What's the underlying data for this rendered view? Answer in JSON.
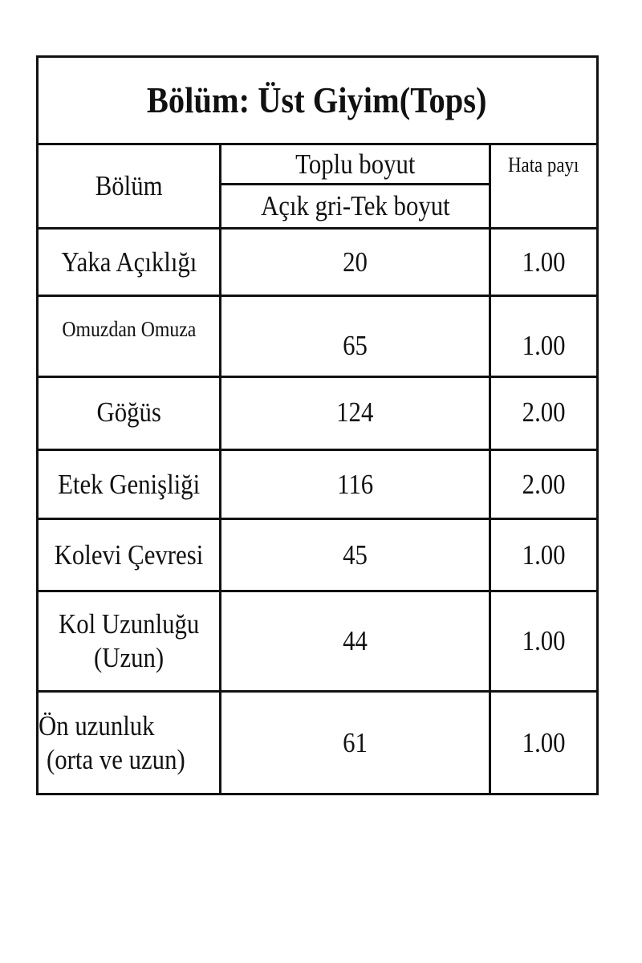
{
  "title": "Bölüm: Üst Giyim(Tops)",
  "header": {
    "col_section": "Bölüm",
    "col_size_top": "Toplu boyut",
    "col_size_bottom": "Açık gri-Tek boyut",
    "col_tolerance": "Hata payı"
  },
  "rows": [
    {
      "section": "Yaka Açıklığı",
      "size": "20",
      "tolerance": "1.00"
    },
    {
      "section": "Omuzdan Omuza",
      "size": "65",
      "tolerance": "1.00"
    },
    {
      "section": "Göğüs",
      "size": "124",
      "tolerance": "2.00"
    },
    {
      "section": "Etek Genişliği",
      "size": "116",
      "tolerance": "2.00"
    },
    {
      "section": "Kolevi Çevresi",
      "size": "45",
      "tolerance": "1.00"
    },
    {
      "section_line1": "Kol Uzunluğu",
      "section_line2": "(Uzun)",
      "size": "44",
      "tolerance": "1.00"
    },
    {
      "section_line1": "Ön uzunluk",
      "section_line2": "(orta ve uzun)",
      "size": "61",
      "tolerance": "1.00"
    }
  ]
}
